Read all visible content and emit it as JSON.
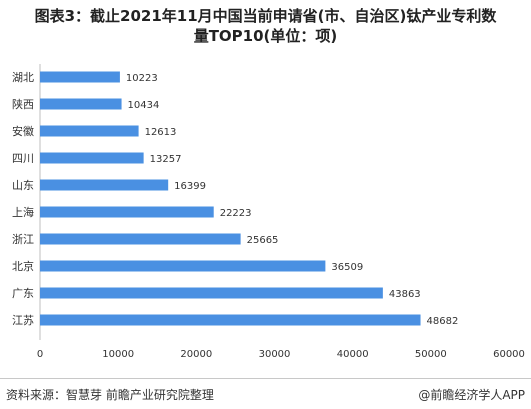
{
  "title_lines": [
    "图表3：截止2021年11月中国当前申请省(市、自治区)钛产业专利数",
    "量TOP10(单位：项)"
  ],
  "footer": {
    "source": "资料来源：智慧芽 前瞻产业研究院整理",
    "brand": "@前瞻经济学人APP"
  },
  "colors": {
    "bar": "#4a90e2",
    "axis": "#999999",
    "text": "#333333"
  },
  "chart_data": {
    "type": "bar",
    "orientation": "horizontal",
    "title": "图表3：截止2021年11月中国当前申请省(市、自治区)钛产业专利数量TOP10(单位：项)",
    "categories": [
      "湖北",
      "陕西",
      "安徽",
      "四川",
      "山东",
      "上海",
      "浙江",
      "北京",
      "广东",
      "江苏"
    ],
    "values": [
      10223,
      10434,
      12613,
      13257,
      16399,
      22223,
      25665,
      36509,
      43863,
      48682
    ],
    "xlim": [
      0,
      60000
    ],
    "xticks": [
      "0",
      "10000",
      "20000",
      "30000",
      "40000",
      "50000",
      "60000"
    ],
    "xlabel": "",
    "ylabel": "",
    "grid": false,
    "data_labels": true
  }
}
